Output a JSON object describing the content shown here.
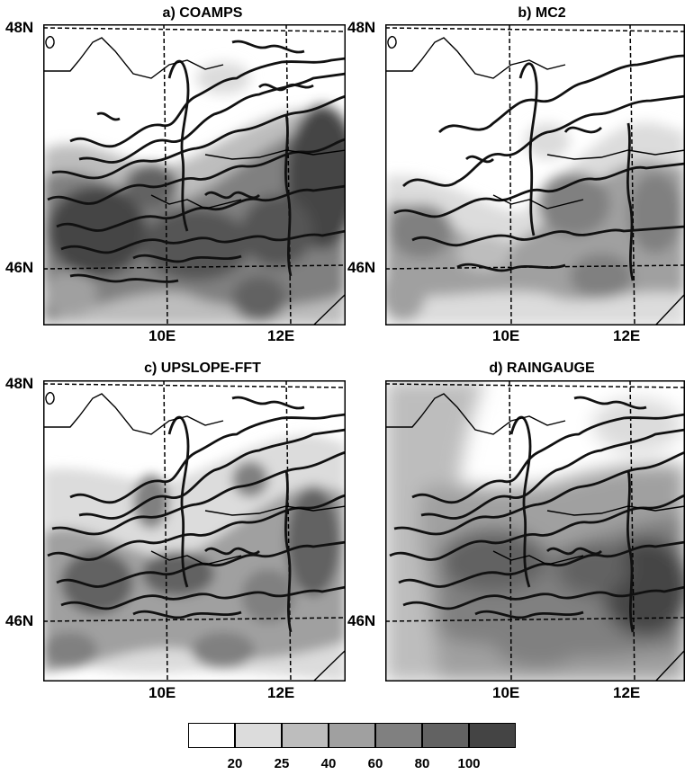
{
  "panels": [
    {
      "title": "a) COAMPS",
      "lat_top": "48N",
      "lat_bottom": "46N",
      "lon_left": "10E",
      "lon_right": "12E"
    },
    {
      "title": "b) MC2",
      "lat_top": "48N",
      "lat_bottom": "46N",
      "lon_left": "10E",
      "lon_right": "12E"
    },
    {
      "title": "c) UPSLOPE-FFT",
      "lat_top": "48N",
      "lat_bottom": "46N",
      "lon_left": "10E",
      "lon_right": "12E"
    },
    {
      "title": "d) RAINGAUGE",
      "lat_top": "48N",
      "lat_bottom": "46N",
      "lon_left": "10E",
      "lon_right": "12E"
    }
  ],
  "legend": {
    "labels": [
      "20",
      "25",
      "40",
      "60",
      "80",
      "100"
    ],
    "colors": [
      "#ffffff",
      "#dcdcdc",
      "#bdbdbd",
      "#a0a0a0",
      "#808080",
      "#626262",
      "#444444"
    ]
  }
}
